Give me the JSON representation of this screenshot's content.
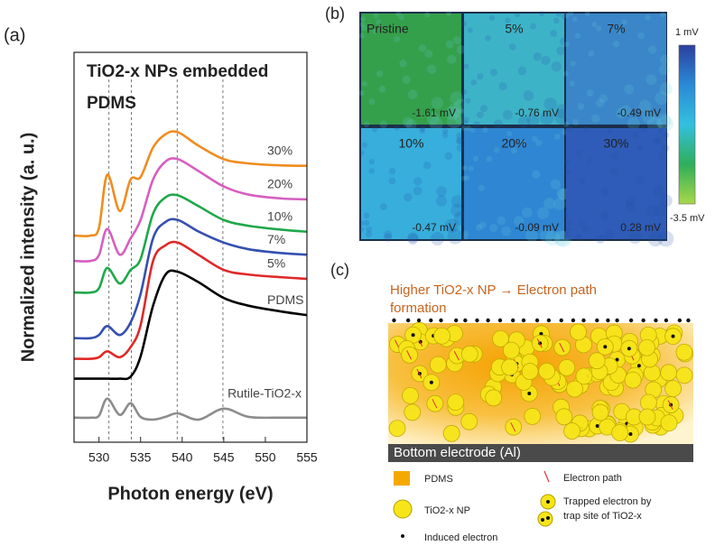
{
  "panel_labels": [
    "(a)",
    "(b)",
    "(c)"
  ],
  "chart_data": {
    "type": "line",
    "title": [
      "TiO2-x NPs embedded",
      "PDMS"
    ],
    "xlabel": "Photon energy (eV)",
    "ylabel": "Normalized intensity (a. u.)",
    "x": [
      527,
      529,
      530,
      531,
      532.5,
      533.8,
      535,
      536.5,
      538,
      539.5,
      542,
      545,
      548,
      552,
      555
    ],
    "xlim": [
      527,
      555
    ],
    "xticks": [
      530,
      535,
      540,
      545,
      550,
      555
    ],
    "ylim": [
      0,
      100
    ],
    "reference_lines": [
      531.2,
      533.9,
      539.4,
      544.9
    ],
    "series": [
      {
        "name": "30%",
        "color": "#f08c1e",
        "values": [
          53,
          53,
          55,
          68.6,
          59.3,
          67.4,
          68,
          75.6,
          79,
          79.5,
          76,
          72.6,
          71.5,
          71,
          70.9
        ]
      },
      {
        "name": "20%",
        "color": "#d65fc0",
        "values": [
          46.5,
          46.5,
          48,
          54.7,
          48.1,
          52.3,
          57,
          67.4,
          72,
          72.6,
          69.5,
          65.6,
          63.5,
          62.5,
          62.3
        ]
      },
      {
        "name": "10%",
        "color": "#1fa84a",
        "values": [
          38.4,
          38.4,
          39.5,
          44.7,
          40.7,
          44.2,
          47,
          58.6,
          62.8,
          63.3,
          60.5,
          57,
          55.5,
          54.5,
          54
        ]
      },
      {
        "name": "7%",
        "color": "#3550b0",
        "values": [
          26.7,
          26.7,
          27.5,
          29.8,
          27.5,
          30.7,
          38,
          52.3,
          56.5,
          57,
          54,
          51.2,
          49.5,
          48.5,
          48.1
        ]
      },
      {
        "name": "5%",
        "color": "#e02828",
        "values": [
          21.4,
          21.4,
          21.8,
          23.3,
          21.8,
          24.4,
          30,
          46.5,
          50.5,
          51.2,
          48,
          44.2,
          43,
          42.3,
          41.9
        ]
      },
      {
        "name": "PDMS",
        "color": "#000000",
        "values": [
          16.3,
          16.3,
          16.3,
          16.3,
          16.3,
          16.8,
          22,
          35,
          43,
          43.7,
          41,
          37,
          35,
          33.5,
          32.6
        ]
      },
      {
        "name": "Rutile-TiO2-x",
        "color": "#8c8c8c",
        "values": [
          6.3,
          6.3,
          6.8,
          11.2,
          7,
          10,
          6.5,
          5.8,
          6.5,
          7.4,
          5.8,
          8.6,
          6.5,
          6.3,
          6.3
        ]
      }
    ]
  },
  "map": {
    "tiles": [
      {
        "name": "Pristine",
        "value": "-1.61 mV",
        "color": "#35a04c"
      },
      {
        "name": "5%",
        "value": "-0.76 mV",
        "color": "#3db3c8"
      },
      {
        "name": "7%",
        "value": "-0.49 mV",
        "color": "#3a86c8"
      },
      {
        "name": "10%",
        "value": "-0.47 mV",
        "color": "#38aedc"
      },
      {
        "name": "20%",
        "value": "-0.09 mV",
        "color": "#2f86d2"
      },
      {
        "name": "30%",
        "value": "0.28 mV",
        "color": "#2e5cb8"
      }
    ],
    "colorbar": {
      "max_label": "1 mV",
      "min_label": "-3.5 mV",
      "colors": [
        "#2c3f9e",
        "#2a8ad6",
        "#33c0de",
        "#2fae5a",
        "#a8d84a"
      ]
    }
  },
  "diagram": {
    "title": [
      "Higher TiO2-x NP → Electron path",
      "formation"
    ],
    "electrode": "Bottom electrode (Al)",
    "legend": [
      "PDMS",
      "Electron path",
      "TiO2-x NP",
      "Trapped electron by",
      "trap site of TiO2-x",
      "Induced electron"
    ]
  }
}
